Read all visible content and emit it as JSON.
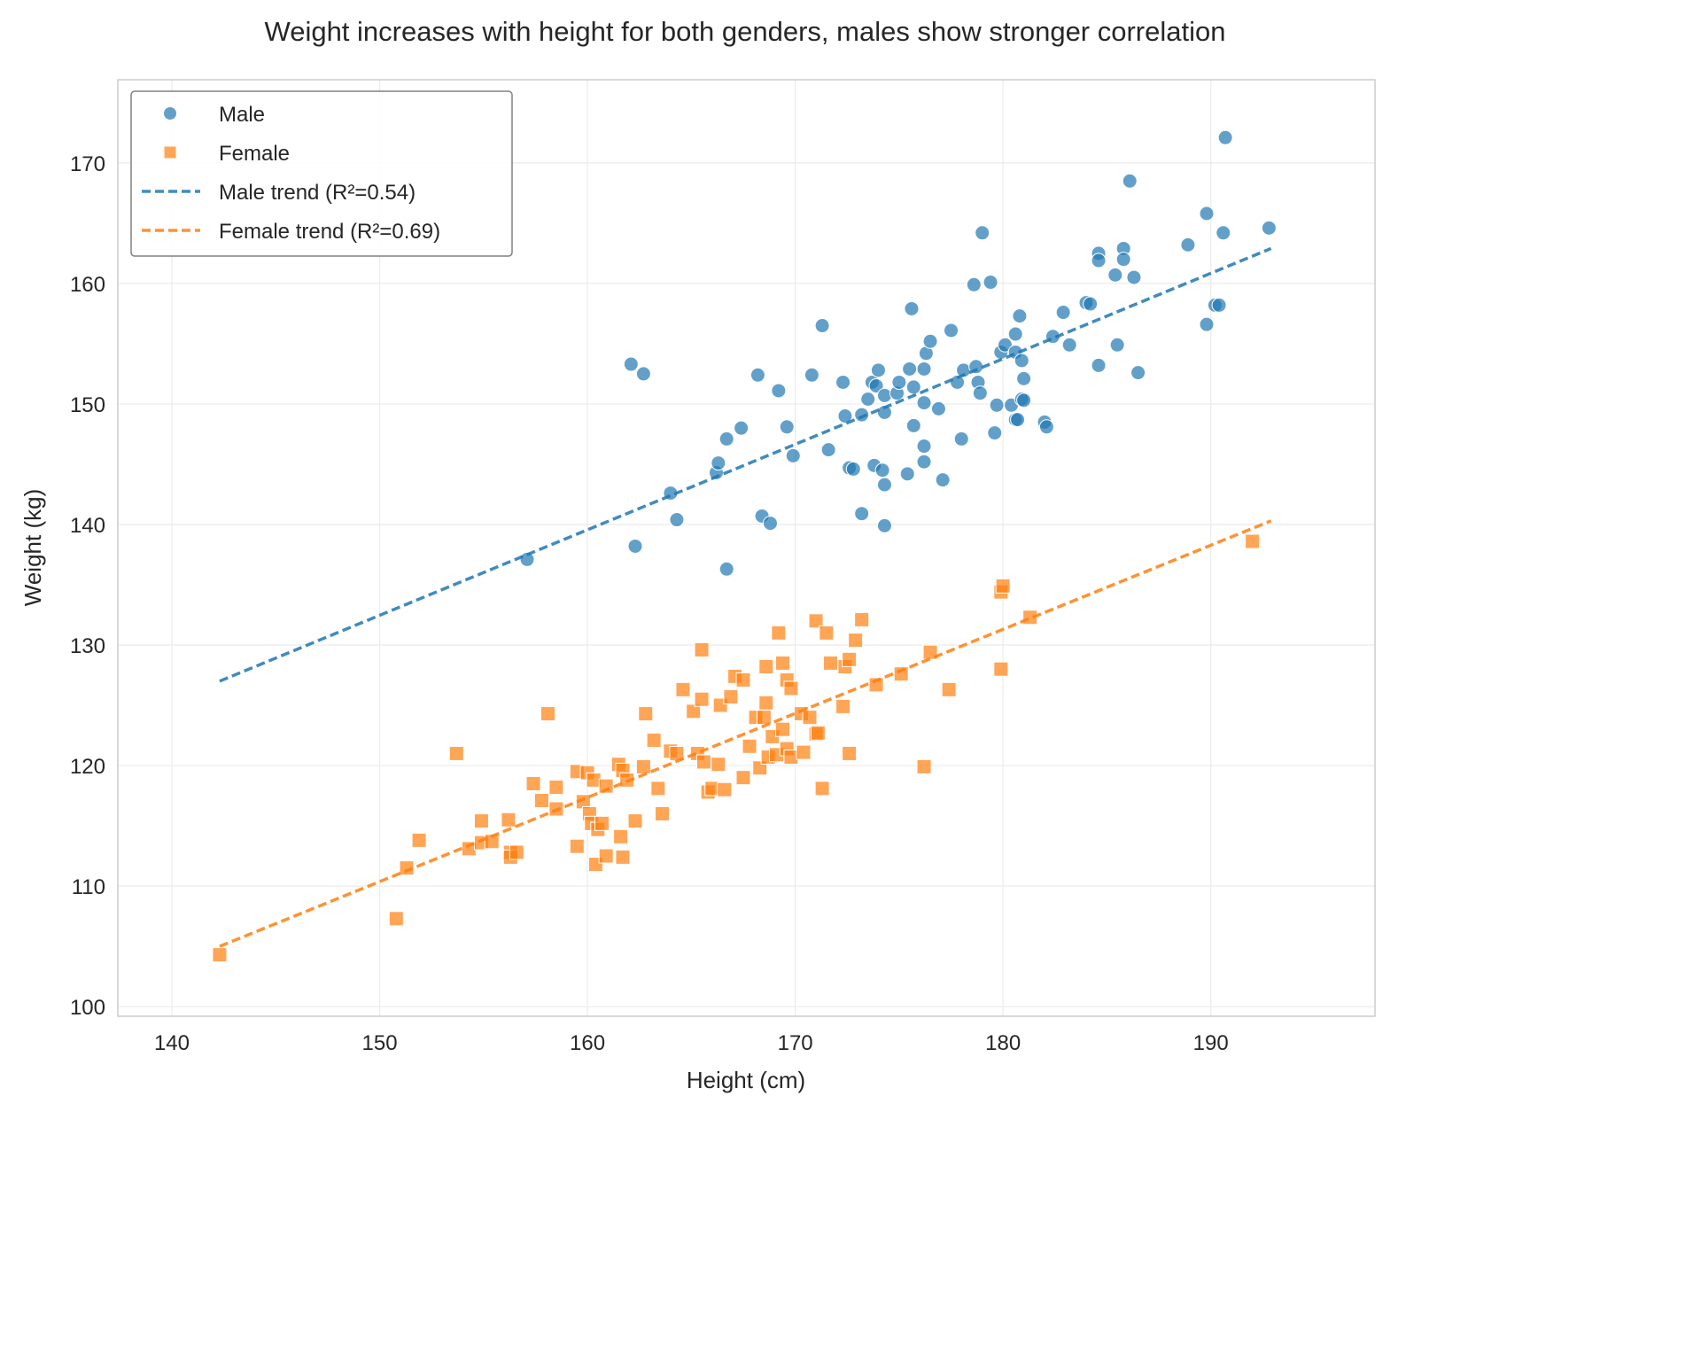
{
  "chart_data": {
    "type": "scatter",
    "title": "Weight increases with height for both genders, males show stronger correlation",
    "xlabel": "Height (cm)",
    "ylabel": "Weight (kg)",
    "xlim": [
      137.4,
      197.9
    ],
    "ylim": [
      99.2,
      176.9
    ],
    "xticks": [
      140,
      150,
      160,
      170,
      180,
      190
    ],
    "yticks": [
      100,
      110,
      120,
      130,
      140,
      150,
      160,
      170
    ],
    "grid": true,
    "legend_position": "top-left",
    "series": [
      {
        "name": "Male",
        "marker": "circle",
        "color": "#1f77b4",
        "points": [
          [
            157.1,
            137.1
          ],
          [
            162.1,
            153.3
          ],
          [
            162.7,
            152.5
          ],
          [
            162.3,
            138.2
          ],
          [
            164.0,
            142.6
          ],
          [
            164.3,
            140.4
          ],
          [
            166.2,
            144.3
          ],
          [
            166.3,
            145.1
          ],
          [
            166.7,
            147.1
          ],
          [
            166.7,
            136.3
          ],
          [
            167.4,
            148.0
          ],
          [
            168.2,
            152.4
          ],
          [
            168.4,
            140.7
          ],
          [
            168.8,
            140.1
          ],
          [
            169.2,
            151.1
          ],
          [
            169.6,
            148.1
          ],
          [
            169.9,
            145.7
          ],
          [
            170.8,
            152.4
          ],
          [
            171.3,
            156.5
          ],
          [
            171.6,
            146.2
          ],
          [
            172.3,
            151.8
          ],
          [
            172.4,
            149.0
          ],
          [
            172.6,
            144.7
          ],
          [
            172.8,
            144.6
          ],
          [
            173.2,
            140.9
          ],
          [
            173.2,
            149.1
          ],
          [
            173.5,
            150.4
          ],
          [
            173.7,
            151.8
          ],
          [
            173.8,
            144.9
          ],
          [
            173.9,
            151.5
          ],
          [
            174.0,
            152.8
          ],
          [
            174.2,
            144.5
          ],
          [
            174.3,
            150.7
          ],
          [
            174.3,
            149.3
          ],
          [
            174.3,
            143.3
          ],
          [
            174.3,
            139.9
          ],
          [
            174.9,
            150.9
          ],
          [
            175.0,
            151.8
          ],
          [
            175.4,
            144.2
          ],
          [
            175.5,
            152.9
          ],
          [
            175.6,
            157.9
          ],
          [
            175.7,
            151.4
          ],
          [
            175.7,
            148.2
          ],
          [
            176.2,
            152.9
          ],
          [
            176.2,
            145.2
          ],
          [
            176.2,
            150.1
          ],
          [
            176.2,
            146.5
          ],
          [
            176.3,
            154.2
          ],
          [
            176.5,
            155.2
          ],
          [
            176.9,
            149.6
          ],
          [
            177.1,
            143.7
          ],
          [
            177.5,
            156.1
          ],
          [
            177.8,
            151.8
          ],
          [
            178.0,
            147.1
          ],
          [
            178.1,
            152.8
          ],
          [
            178.6,
            159.9
          ],
          [
            178.7,
            153.1
          ],
          [
            178.8,
            151.8
          ],
          [
            178.9,
            150.9
          ],
          [
            179.0,
            164.2
          ],
          [
            179.4,
            160.1
          ],
          [
            179.6,
            147.6
          ],
          [
            179.7,
            149.9
          ],
          [
            179.9,
            154.3
          ],
          [
            180.1,
            154.9
          ],
          [
            180.4,
            149.9
          ],
          [
            180.6,
            148.7
          ],
          [
            180.6,
            155.8
          ],
          [
            180.6,
            154.3
          ],
          [
            180.7,
            148.7
          ],
          [
            180.8,
            157.3
          ],
          [
            180.9,
            150.4
          ],
          [
            180.9,
            153.6
          ],
          [
            181.0,
            152.1
          ],
          [
            181.0,
            150.3
          ],
          [
            182.0,
            148.5
          ],
          [
            182.1,
            148.1
          ],
          [
            182.4,
            155.6
          ],
          [
            182.9,
            157.6
          ],
          [
            183.2,
            154.9
          ],
          [
            184.0,
            158.4
          ],
          [
            184.2,
            158.3
          ],
          [
            184.6,
            162.5
          ],
          [
            184.6,
            161.9
          ],
          [
            184.6,
            153.2
          ],
          [
            185.4,
            160.7
          ],
          [
            185.5,
            154.9
          ],
          [
            185.8,
            162.9
          ],
          [
            185.8,
            162.0
          ],
          [
            186.1,
            168.5
          ],
          [
            186.3,
            160.5
          ],
          [
            186.5,
            152.6
          ],
          [
            188.9,
            163.2
          ],
          [
            189.8,
            165.8
          ],
          [
            189.8,
            156.6
          ],
          [
            190.2,
            158.2
          ],
          [
            190.4,
            158.2
          ],
          [
            190.6,
            164.2
          ],
          [
            190.7,
            172.1
          ],
          [
            192.8,
            164.6
          ]
        ]
      },
      {
        "name": "Female",
        "marker": "square",
        "color": "#ff7f0e",
        "points": [
          [
            142.3,
            104.3
          ],
          [
            150.8,
            107.3
          ],
          [
            151.3,
            111.5
          ],
          [
            151.9,
            113.8
          ],
          [
            153.7,
            121.0
          ],
          [
            154.3,
            113.1
          ],
          [
            154.9,
            115.4
          ],
          [
            154.9,
            113.6
          ],
          [
            155.4,
            113.7
          ],
          [
            156.2,
            115.5
          ],
          [
            156.3,
            112.8
          ],
          [
            156.3,
            112.4
          ],
          [
            156.6,
            112.8
          ],
          [
            157.4,
            118.5
          ],
          [
            157.8,
            117.1
          ],
          [
            158.1,
            124.3
          ],
          [
            158.5,
            116.4
          ],
          [
            158.5,
            118.2
          ],
          [
            159.5,
            113.3
          ],
          [
            159.5,
            119.5
          ],
          [
            159.8,
            117.0
          ],
          [
            160.0,
            119.4
          ],
          [
            160.1,
            116.0
          ],
          [
            160.2,
            115.2
          ],
          [
            160.3,
            118.8
          ],
          [
            160.4,
            111.8
          ],
          [
            160.5,
            114.7
          ],
          [
            160.7,
            115.2
          ],
          [
            160.9,
            118.3
          ],
          [
            160.9,
            112.5
          ],
          [
            161.5,
            120.1
          ],
          [
            161.6,
            114.1
          ],
          [
            161.7,
            112.4
          ],
          [
            161.7,
            119.6
          ],
          [
            161.9,
            118.8
          ],
          [
            162.3,
            115.4
          ],
          [
            162.7,
            119.9
          ],
          [
            162.8,
            124.3
          ],
          [
            163.2,
            122.1
          ],
          [
            163.4,
            118.1
          ],
          [
            163.6,
            116.0
          ],
          [
            164.0,
            121.2
          ],
          [
            164.3,
            121.0
          ],
          [
            164.6,
            126.3
          ],
          [
            165.1,
            124.5
          ],
          [
            165.3,
            121.0
          ],
          [
            165.5,
            125.5
          ],
          [
            165.5,
            129.6
          ],
          [
            165.6,
            120.3
          ],
          [
            165.8,
            117.8
          ],
          [
            166.0,
            118.1
          ],
          [
            166.3,
            120.1
          ],
          [
            166.4,
            125.0
          ],
          [
            166.6,
            118.0
          ],
          [
            166.9,
            125.7
          ],
          [
            167.1,
            127.4
          ],
          [
            167.5,
            127.1
          ],
          [
            167.5,
            119.0
          ],
          [
            167.8,
            121.6
          ],
          [
            168.1,
            124.0
          ],
          [
            168.3,
            119.8
          ],
          [
            168.5,
            124.0
          ],
          [
            168.6,
            128.2
          ],
          [
            168.6,
            125.2
          ],
          [
            168.7,
            120.7
          ],
          [
            168.9,
            122.4
          ],
          [
            169.1,
            120.9
          ],
          [
            169.2,
            131.0
          ],
          [
            169.4,
            128.5
          ],
          [
            169.4,
            123.0
          ],
          [
            169.6,
            127.1
          ],
          [
            169.6,
            121.4
          ],
          [
            169.8,
            126.4
          ],
          [
            169.8,
            120.7
          ],
          [
            170.3,
            124.3
          ],
          [
            170.4,
            121.1
          ],
          [
            170.7,
            124.0
          ],
          [
            171.0,
            132.0
          ],
          [
            171.0,
            122.6
          ],
          [
            171.1,
            122.7
          ],
          [
            171.3,
            118.1
          ],
          [
            171.5,
            131.0
          ],
          [
            171.7,
            128.5
          ],
          [
            172.3,
            124.9
          ],
          [
            172.4,
            128.2
          ],
          [
            172.6,
            128.8
          ],
          [
            172.6,
            121.0
          ],
          [
            172.9,
            130.4
          ],
          [
            173.2,
            132.1
          ],
          [
            173.9,
            126.7
          ],
          [
            175.1,
            127.6
          ],
          [
            176.2,
            119.9
          ],
          [
            176.5,
            129.4
          ],
          [
            177.4,
            126.3
          ],
          [
            179.9,
            134.4
          ],
          [
            180.0,
            134.9
          ],
          [
            179.9,
            128.0
          ],
          [
            181.3,
            132.3
          ],
          [
            192.0,
            138.6
          ]
        ]
      },
      {
        "name": "Male trend (R²=0.54)",
        "type": "line",
        "style": "dashed",
        "color": "#1f77b4",
        "points": [
          [
            142.3,
            127.0
          ],
          [
            192.9,
            162.9
          ]
        ]
      },
      {
        "name": "Female trend (R²=0.69)",
        "type": "line",
        "style": "dashed",
        "color": "#ff7f0e",
        "points": [
          [
            142.3,
            105.0
          ],
          [
            192.9,
            140.3
          ]
        ]
      }
    ]
  }
}
